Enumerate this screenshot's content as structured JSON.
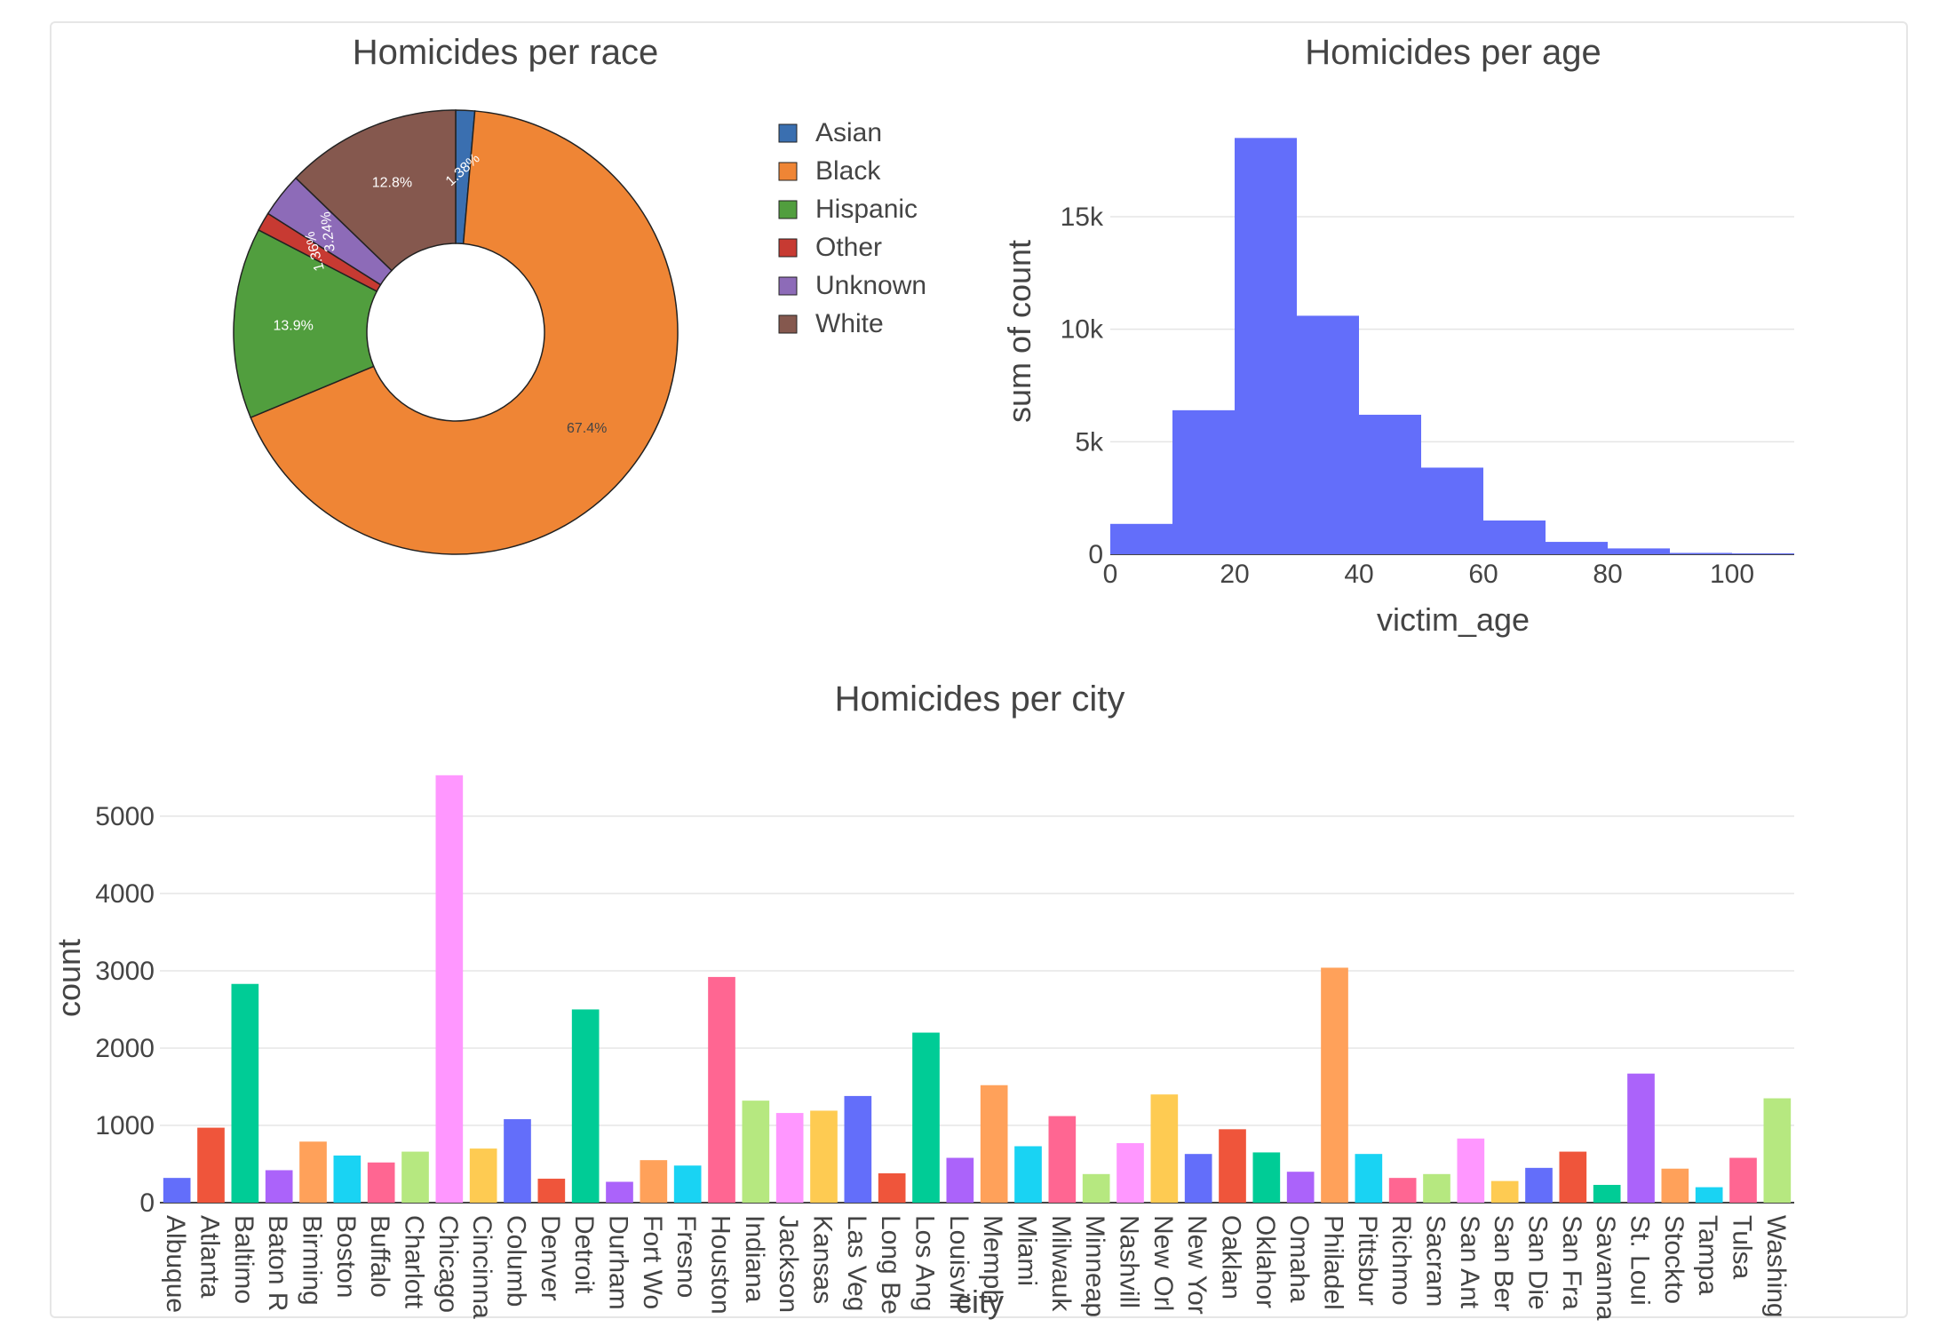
{
  "charts": {
    "race": {
      "title": "Homicides per race",
      "legend": [
        {
          "name": "Asian",
          "color": "#3a6fb0"
        },
        {
          "name": "Black",
          "color": "#ef8535"
        },
        {
          "name": "Hispanic",
          "color": "#519e3e"
        },
        {
          "name": "Other",
          "color": "#c73a32"
        },
        {
          "name": "Unknown",
          "color": "#8d6bb8"
        },
        {
          "name": "White",
          "color": "#85584e"
        }
      ]
    },
    "age": {
      "title": "Homicides per age",
      "xlabel": "victim_age",
      "ylabel": "sum of count"
    },
    "city": {
      "title": "Homicides per city",
      "xlabel": "city",
      "ylabel": "count"
    }
  },
  "chart_data": [
    {
      "type": "pie",
      "title": "Homicides per race",
      "hole": true,
      "legend_position": "right",
      "labels": [
        "Asian",
        "Black",
        "Hispanic",
        "Other",
        "Unknown",
        "White"
      ],
      "values": [
        1.38,
        67.4,
        13.9,
        1.36,
        3.24,
        12.8
      ],
      "text_labels": [
        "1.38%",
        "67.4%",
        "13.9%",
        "1.36%",
        "3.24%",
        "12.8%"
      ],
      "colors": [
        "#3a6fb0",
        "#ef8535",
        "#519e3e",
        "#c73a32",
        "#8d6bb8",
        "#85584e"
      ]
    },
    {
      "type": "bar",
      "subtype": "histogram",
      "title": "Homicides per age",
      "xlabel": "victim_age",
      "ylabel": "sum of count",
      "bin_edges": [
        0,
        10,
        20,
        30,
        40,
        50,
        60,
        70,
        80,
        90,
        100,
        110
      ],
      "values": [
        1350,
        6400,
        18500,
        10600,
        6200,
        3850,
        1500,
        550,
        260,
        60,
        40
      ],
      "xlim": [
        0,
        110
      ],
      "ylim": [
        0,
        19500
      ],
      "xticks": [
        0,
        20,
        40,
        60,
        80,
        100
      ],
      "xtick_labels": [
        "0",
        "20",
        "40",
        "60",
        "80",
        "100"
      ],
      "yticks": [
        0,
        5000,
        10000,
        15000
      ],
      "ytick_labels": [
        "0",
        "5k",
        "10k",
        "15k"
      ],
      "color": "#636efa",
      "grid": true
    },
    {
      "type": "bar",
      "title": "Homicides per city",
      "xlabel": "city",
      "ylabel": "count",
      "ylim": [
        0,
        5700
      ],
      "yticks": [
        0,
        1000,
        2000,
        3000,
        4000,
        5000
      ],
      "ytick_labels": [
        "0",
        "1000",
        "2000",
        "3000",
        "4000",
        "5000"
      ],
      "grid": true,
      "categories": [
        "Albuque",
        "Atlanta",
        "Baltimo",
        "Baton R",
        "Birming",
        "Boston",
        "Buffalo",
        "Charlott",
        "Chicago",
        "Cincinna",
        "Columb",
        "Denver",
        "Detroit",
        "Durham",
        "Fort Wo",
        "Fresno",
        "Houston",
        "Indiana",
        "Jackson",
        "Kansas",
        "Las Veg",
        "Long Be",
        "Los Ang",
        "Louisvill",
        "Memph",
        "Miami",
        "Milwauk",
        "Minneap",
        "Nashvill",
        "New Orl",
        "New Yor",
        "Oaklan",
        "Oklahor",
        "Omaha",
        "Philadel",
        "Pittsbur",
        "Richmo",
        "Sacram",
        "San Ant",
        "San Ber",
        "San Die",
        "San Fra",
        "Savanna",
        "St. Loui",
        "Stockto",
        "Tampa",
        "Tulsa",
        "Washing"
      ],
      "values": [
        320,
        970,
        2830,
        420,
        790,
        610,
        520,
        660,
        5530,
        700,
        1080,
        310,
        2500,
        270,
        550,
        480,
        2920,
        1320,
        1160,
        1190,
        1380,
        380,
        2200,
        580,
        1520,
        730,
        1120,
        370,
        770,
        1400,
        630,
        950,
        650,
        400,
        3040,
        630,
        320,
        370,
        830,
        280,
        450,
        660,
        230,
        1670,
        440,
        200,
        580,
        1350
      ],
      "colors": [
        "#636efa",
        "#EF553B",
        "#00cc96",
        "#ab63fa",
        "#FFA15A",
        "#19d3f3",
        "#FF6692",
        "#B6E880",
        "#FF97FF",
        "#FECB52"
      ]
    }
  ]
}
